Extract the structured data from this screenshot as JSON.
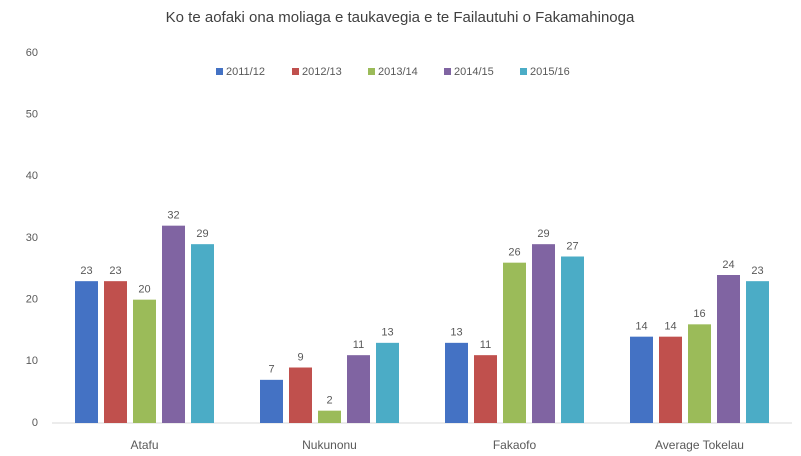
{
  "chart_data": {
    "type": "bar",
    "title": "Ko te aofaki ona moliaga e taukavegia e te Failautuhi o Fakamahinoga",
    "categories": [
      "Atafu",
      "Nukunonu",
      "Fakaofo",
      "Average Tokelau"
    ],
    "series": [
      {
        "name": "2011/12",
        "color": "#4472c4",
        "values": [
          23,
          7,
          13,
          14
        ]
      },
      {
        "name": "2012/13",
        "color": "#c0504d",
        "values": [
          23,
          9,
          11,
          14
        ]
      },
      {
        "name": "2013/14",
        "color": "#9bbb59",
        "values": [
          20,
          2,
          26,
          16
        ]
      },
      {
        "name": "2014/15",
        "color": "#8064a2",
        "values": [
          32,
          11,
          29,
          24
        ]
      },
      {
        "name": "2015/16",
        "color": "#4bacc6",
        "values": [
          29,
          13,
          27,
          23
        ]
      }
    ],
    "ylim": [
      0,
      60
    ],
    "yticks": [
      0,
      10,
      20,
      30,
      40,
      50,
      60
    ],
    "grid": false,
    "legend": "top"
  }
}
